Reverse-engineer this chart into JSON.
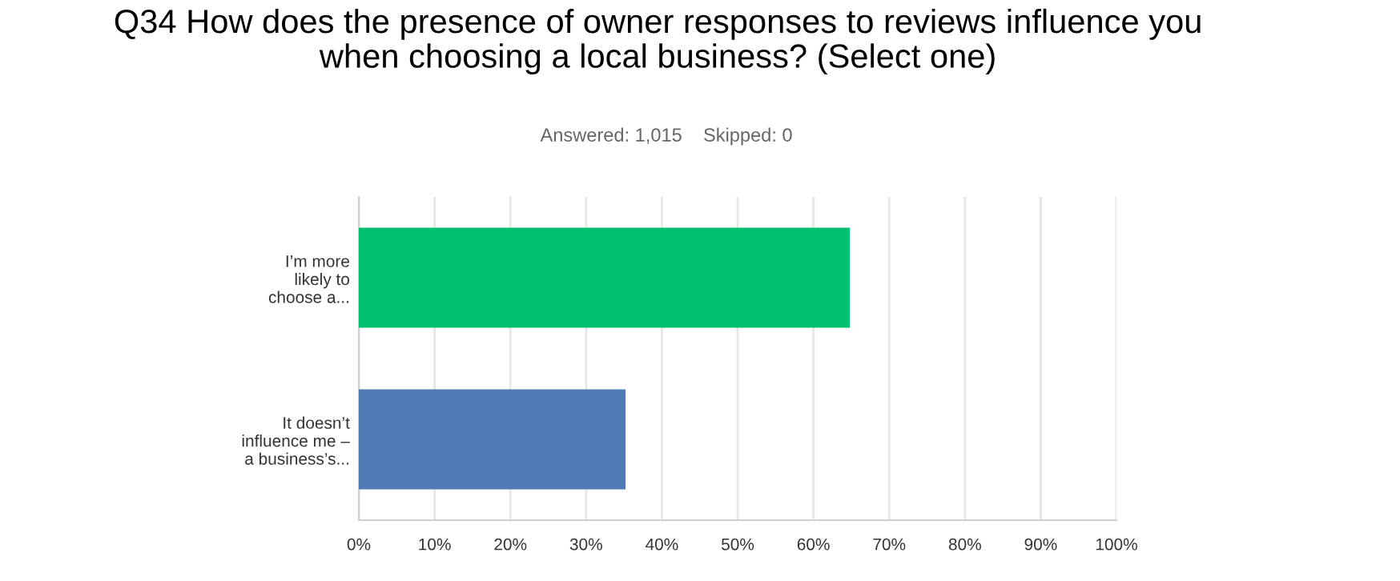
{
  "chart_data": {
    "type": "bar",
    "orientation": "horizontal",
    "title": "Q34 How does the presence of owner responses to reviews influence you\nwhen choosing a local business? (Select one)",
    "subtitle": "Answered: 1,015    Skipped: 0",
    "categories": [
      "I’m more\nlikely to\nchoose a...",
      "It doesn’t\ninfluence me –\na business’s..."
    ],
    "values": [
      64.8,
      35.2
    ],
    "colors": [
      "#00bf6f",
      "#507cb6"
    ],
    "xlim": [
      0,
      100
    ],
    "xticks": [
      {
        "value": 0,
        "label": "0%"
      },
      {
        "value": 10,
        "label": "10%"
      },
      {
        "value": 20,
        "label": "20%"
      },
      {
        "value": 30,
        "label": "30%"
      },
      {
        "value": 40,
        "label": "40%"
      },
      {
        "value": 50,
        "label": "50%"
      },
      {
        "value": 60,
        "label": "60%"
      },
      {
        "value": 70,
        "label": "70%"
      },
      {
        "value": 80,
        "label": "80%"
      },
      {
        "value": 90,
        "label": "90%"
      },
      {
        "value": 100,
        "label": "100%"
      }
    ],
    "grid": "x"
  }
}
